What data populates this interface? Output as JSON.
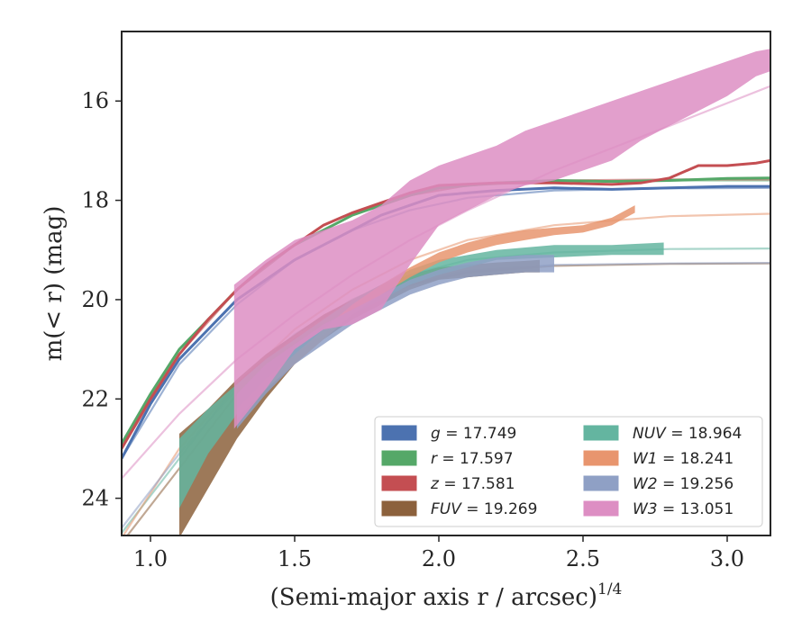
{
  "chart_data": {
    "type": "area",
    "xlabel": "(Semi-major axis r / arcsec)",
    "xlabel_exponent": "1/4",
    "ylabel": "m(< r) (mag)",
    "xlim": [
      0.9,
      3.15
    ],
    "ylim": [
      24.75,
      14.6
    ],
    "y_inverted": true,
    "x_ticks": [
      1.0,
      1.5,
      2.0,
      2.5,
      3.0
    ],
    "x_tick_labels": [
      "1.0",
      "1.5",
      "2.0",
      "2.5",
      "3.0"
    ],
    "y_ticks": [
      16,
      18,
      20,
      22,
      24
    ],
    "y_tick_labels": [
      "16",
      "18",
      "20",
      "22",
      "24"
    ],
    "grid": false,
    "legend_position": "lower-right",
    "series": [
      {
        "name": "g = 17.749",
        "band": "g",
        "mag": "17.749",
        "color": "#4c72b0",
        "kind": "line",
        "x": [
          0.9,
          1.0,
          1.1,
          1.2,
          1.3,
          1.4,
          1.5,
          1.6,
          1.7,
          1.8,
          1.9,
          2.0,
          2.2,
          2.4,
          2.6,
          2.8,
          3.0,
          3.15
        ],
        "y": [
          23.2,
          22.1,
          21.2,
          20.6,
          20.0,
          19.6,
          19.2,
          18.9,
          18.6,
          18.3,
          18.1,
          17.9,
          17.8,
          17.75,
          17.78,
          17.75,
          17.72,
          17.72
        ],
        "model": [
          [
            0.9,
            23.2
          ],
          [
            1.1,
            21.3
          ],
          [
            1.3,
            20.1
          ],
          [
            1.5,
            19.2
          ],
          [
            1.7,
            18.6
          ],
          [
            1.9,
            18.2
          ],
          [
            2.1,
            17.95
          ],
          [
            2.4,
            17.8
          ],
          [
            2.8,
            17.76
          ],
          [
            3.15,
            17.75
          ]
        ]
      },
      {
        "name": "r = 17.597",
        "band": "r",
        "mag": "17.597",
        "color": "#55a868",
        "kind": "line",
        "x": [
          0.9,
          1.0,
          1.1,
          1.2,
          1.3,
          1.4,
          1.5,
          1.6,
          1.7,
          1.8,
          1.9,
          2.0,
          2.2,
          2.4,
          2.6,
          2.8,
          3.0,
          3.15
        ],
        "y": [
          22.9,
          21.9,
          21.0,
          20.4,
          19.8,
          19.3,
          18.9,
          18.6,
          18.3,
          18.1,
          17.9,
          17.75,
          17.65,
          17.6,
          17.62,
          17.6,
          17.56,
          17.55
        ],
        "model": [
          [
            0.9,
            22.9
          ],
          [
            1.1,
            21.0
          ],
          [
            1.3,
            19.8
          ],
          [
            1.5,
            18.9
          ],
          [
            1.7,
            18.3
          ],
          [
            1.9,
            17.9
          ],
          [
            2.1,
            17.7
          ],
          [
            2.4,
            17.62
          ],
          [
            2.8,
            17.6
          ],
          [
            3.15,
            17.6
          ]
        ]
      },
      {
        "name": "z = 17.581",
        "band": "z",
        "mag": "17.581",
        "color": "#c44e52",
        "kind": "line",
        "x": [
          0.9,
          1.0,
          1.1,
          1.2,
          1.3,
          1.4,
          1.5,
          1.6,
          1.7,
          1.8,
          1.9,
          2.0,
          2.2,
          2.4,
          2.6,
          2.7,
          2.8,
          2.9,
          3.0,
          3.1,
          3.15
        ],
        "y": [
          23.0,
          22.0,
          21.1,
          20.4,
          19.8,
          19.3,
          18.9,
          18.5,
          18.25,
          18.05,
          17.85,
          17.7,
          17.65,
          17.65,
          17.68,
          17.65,
          17.55,
          17.3,
          17.3,
          17.25,
          17.2
        ],
        "model": [
          [
            0.9,
            23.0
          ],
          [
            1.1,
            21.1
          ],
          [
            1.3,
            19.8
          ],
          [
            1.5,
            18.9
          ],
          [
            1.7,
            18.3
          ],
          [
            1.9,
            17.9
          ],
          [
            2.1,
            17.7
          ],
          [
            2.4,
            17.6
          ],
          [
            2.8,
            17.58
          ],
          [
            3.15,
            17.58
          ]
        ]
      },
      {
        "name": "FUV = 19.269",
        "band": "FUV",
        "mag": "19.269",
        "color": "#8c613c",
        "kind": "band",
        "x": [
          1.1,
          1.2,
          1.3,
          1.4,
          1.5,
          1.6,
          1.7,
          1.8,
          1.9,
          2.0,
          2.1,
          2.2,
          2.3,
          2.35
        ],
        "y_low": [
          22.7,
          22.2,
          21.6,
          21.1,
          20.7,
          20.3,
          20.0,
          19.7,
          19.5,
          19.35,
          19.3,
          19.25,
          19.22,
          19.2
        ],
        "y_high": [
          24.8,
          23.8,
          22.8,
          22.0,
          21.3,
          20.8,
          20.4,
          20.1,
          19.8,
          19.6,
          19.55,
          19.5,
          19.45,
          19.45
        ],
        "model": [
          [
            0.9,
            24.9
          ],
          [
            1.1,
            23.4
          ],
          [
            1.3,
            21.9
          ],
          [
            1.5,
            20.9
          ],
          [
            1.7,
            20.2
          ],
          [
            1.9,
            19.7
          ],
          [
            2.1,
            19.45
          ],
          [
            2.4,
            19.32
          ],
          [
            2.8,
            19.28
          ],
          [
            3.15,
            19.27
          ]
        ]
      },
      {
        "name": "NUV = 18.964",
        "band": "NUV",
        "mag": "18.964",
        "color": "#64b5a0",
        "kind": "band",
        "x": [
          1.1,
          1.2,
          1.3,
          1.4,
          1.5,
          1.6,
          1.7,
          1.8,
          1.9,
          2.0,
          2.2,
          2.4,
          2.6,
          2.78
        ],
        "y_low": [
          22.8,
          22.2,
          21.7,
          21.2,
          20.8,
          20.4,
          20.0,
          19.7,
          19.4,
          19.2,
          19.0,
          18.9,
          18.9,
          18.85
        ],
        "y_high": [
          24.2,
          23.1,
          22.3,
          21.6,
          21.1,
          20.7,
          20.3,
          20.0,
          19.7,
          19.5,
          19.2,
          19.15,
          19.1,
          19.1
        ],
        "model": [
          [
            0.9,
            24.7
          ],
          [
            1.1,
            23.2
          ],
          [
            1.3,
            21.7
          ],
          [
            1.5,
            20.7
          ],
          [
            1.7,
            20.0
          ],
          [
            1.9,
            19.5
          ],
          [
            2.1,
            19.2
          ],
          [
            2.4,
            19.05
          ],
          [
            2.8,
            18.98
          ],
          [
            3.15,
            18.97
          ]
        ]
      },
      {
        "name": "W1 = 18.241",
        "band": "W1",
        "mag": "18.241",
        "color": "#e8956e",
        "kind": "band",
        "x": [
          1.3,
          1.4,
          1.5,
          1.6,
          1.7,
          1.8,
          1.9,
          2.0,
          2.1,
          2.2,
          2.3,
          2.4,
          2.5,
          2.6,
          2.68
        ],
        "y_low": [
          22.2,
          21.6,
          21.1,
          20.6,
          20.1,
          19.7,
          19.35,
          19.05,
          18.85,
          18.7,
          18.6,
          18.55,
          18.5,
          18.35,
          18.1
        ],
        "y_high": [
          22.4,
          21.8,
          21.3,
          20.8,
          20.3,
          19.9,
          19.55,
          19.25,
          19.05,
          18.9,
          18.8,
          18.7,
          18.65,
          18.5,
          18.25
        ],
        "model": [
          [
            0.9,
            24.8
          ],
          [
            1.1,
            23.0
          ],
          [
            1.3,
            21.7
          ],
          [
            1.5,
            20.6
          ],
          [
            1.7,
            19.8
          ],
          [
            1.9,
            19.2
          ],
          [
            2.1,
            18.8
          ],
          [
            2.4,
            18.5
          ],
          [
            2.8,
            18.32
          ],
          [
            3.15,
            18.27
          ]
        ]
      },
      {
        "name": "W2 = 19.256",
        "band": "W2",
        "mag": "19.256",
        "color": "#8fa0c5",
        "kind": "band",
        "x": [
          1.3,
          1.4,
          1.5,
          1.6,
          1.7,
          1.8,
          1.9,
          2.0,
          2.1,
          2.2,
          2.3,
          2.4
        ],
        "y_low": [
          21.9,
          21.3,
          20.9,
          20.5,
          20.2,
          19.9,
          19.6,
          19.4,
          19.25,
          19.15,
          19.1,
          19.1
        ],
        "y_high": [
          22.6,
          21.9,
          21.3,
          20.9,
          20.5,
          20.2,
          19.9,
          19.7,
          19.55,
          19.5,
          19.45,
          19.45
        ],
        "model": [
          [
            0.9,
            24.6
          ],
          [
            1.1,
            23.1
          ],
          [
            1.3,
            21.8
          ],
          [
            1.5,
            20.8
          ],
          [
            1.7,
            20.1
          ],
          [
            1.9,
            19.65
          ],
          [
            2.1,
            19.42
          ],
          [
            2.4,
            19.3
          ],
          [
            2.8,
            19.27
          ],
          [
            3.15,
            19.26
          ]
        ]
      },
      {
        "name": "W3 = 13.051",
        "band": "W3",
        "mag": "13.051",
        "color": "#dd8ec3",
        "kind": "band",
        "x": [
          1.29,
          1.4,
          1.5,
          1.6,
          1.7,
          1.8,
          1.9,
          2.0,
          2.1,
          2.2,
          2.3,
          2.4,
          2.5,
          2.6,
          2.7,
          2.8,
          2.9,
          3.0,
          3.1,
          3.15
        ],
        "y_low": [
          19.7,
          19.2,
          18.8,
          18.6,
          18.4,
          18.1,
          17.6,
          17.3,
          17.1,
          16.9,
          16.6,
          16.4,
          16.2,
          16.0,
          15.8,
          15.6,
          15.4,
          15.2,
          15.0,
          14.95
        ],
        "y_high": [
          22.6,
          21.8,
          21.0,
          20.6,
          20.5,
          20.2,
          19.3,
          18.5,
          18.2,
          17.9,
          17.7,
          17.6,
          17.4,
          17.2,
          16.8,
          16.5,
          16.2,
          15.9,
          15.5,
          15.4
        ],
        "model": [
          [
            0.9,
            23.6
          ],
          [
            1.1,
            22.3
          ],
          [
            1.3,
            21.2
          ],
          [
            1.5,
            20.3
          ],
          [
            1.7,
            19.5
          ],
          [
            1.9,
            18.8
          ],
          [
            2.1,
            18.2
          ],
          [
            2.4,
            17.4
          ],
          [
            2.8,
            16.5
          ],
          [
            3.15,
            15.7
          ]
        ]
      }
    ]
  }
}
